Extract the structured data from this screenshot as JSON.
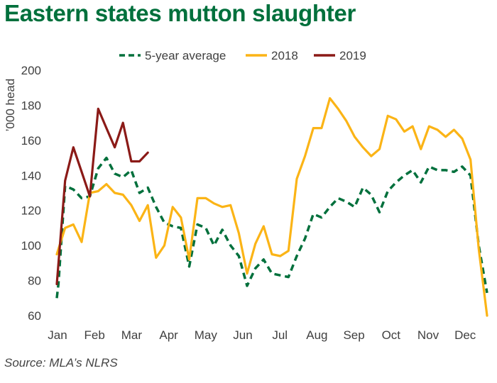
{
  "title": "Eastern states mutton slaughter",
  "source": "Source: MLA’s NLRS",
  "chart_data": {
    "type": "line",
    "ylabel": "’000 head",
    "ylim": [
      60,
      200
    ],
    "yticks": [
      60,
      80,
      100,
      120,
      140,
      160,
      180,
      200
    ],
    "x_unit": "week of year",
    "xlim": [
      1,
      53
    ],
    "month_labels": [
      "Jan",
      "Feb",
      "Mar",
      "Apr",
      "May",
      "Jun",
      "Jul",
      "Aug",
      "Sep",
      "Oct",
      "Nov",
      "Dec"
    ],
    "grid": false,
    "legend_position": "top",
    "series": [
      {
        "name": "5-year average",
        "color": "#00703c",
        "style": "dashed",
        "x": [
          1,
          1.2,
          2,
          3,
          4,
          5,
          6,
          7,
          8,
          9,
          10,
          11,
          12,
          13,
          14,
          15,
          16,
          17,
          18,
          19,
          20,
          21,
          22,
          23,
          24,
          25,
          26,
          27,
          28,
          29,
          30,
          31,
          32,
          33,
          34,
          35,
          36,
          37,
          38,
          39,
          40,
          41,
          42,
          43,
          44,
          45,
          46,
          47,
          48,
          49,
          50,
          51,
          52,
          53
        ],
        "values": [
          70,
          78,
          134,
          132,
          127,
          128,
          144,
          150,
          141,
          139,
          143,
          130,
          133,
          122,
          113,
          111,
          110,
          88,
          112,
          110,
          100,
          109,
          100,
          94,
          77,
          87,
          92,
          84,
          83,
          82,
          94,
          104,
          118,
          116,
          122,
          127,
          125,
          122,
          133,
          129,
          119,
          131,
          136,
          140,
          143,
          136,
          145,
          143,
          143,
          142,
          145,
          140,
          100,
          73
        ]
      },
      {
        "name": "2018",
        "color": "#fbb416",
        "style": "solid",
        "x": [
          1,
          2,
          3,
          4,
          5,
          6,
          7,
          8,
          9,
          10,
          11,
          12,
          13,
          14,
          15,
          16,
          17,
          18,
          19,
          20,
          21,
          22,
          23,
          24,
          25,
          26,
          27,
          28,
          29,
          30,
          31,
          32,
          33,
          34,
          35,
          36,
          37,
          38,
          39,
          40,
          41,
          42,
          43,
          44,
          45,
          46,
          47,
          48,
          49,
          50,
          51,
          52,
          53
        ],
        "values": [
          95,
          110,
          112,
          102,
          130,
          131,
          135,
          130,
          129,
          123,
          114,
          123,
          93,
          100,
          122,
          116,
          92,
          127,
          127,
          124,
          122,
          123,
          107,
          84,
          101,
          111,
          95,
          94,
          97,
          138,
          151,
          167,
          167,
          184,
          178,
          171,
          162,
          156,
          151,
          155,
          174,
          172,
          165,
          168,
          155,
          168,
          166,
          162,
          166,
          161,
          149,
          98,
          60
        ]
      },
      {
        "name": "2019",
        "color": "#8b1a17",
        "style": "solid",
        "x": [
          1,
          2,
          3,
          4,
          5,
          6,
          7,
          8,
          9,
          10,
          11,
          12
        ],
        "values": [
          78,
          137,
          156,
          142,
          128,
          178,
          167,
          156,
          170,
          148,
          148,
          153
        ]
      }
    ]
  }
}
